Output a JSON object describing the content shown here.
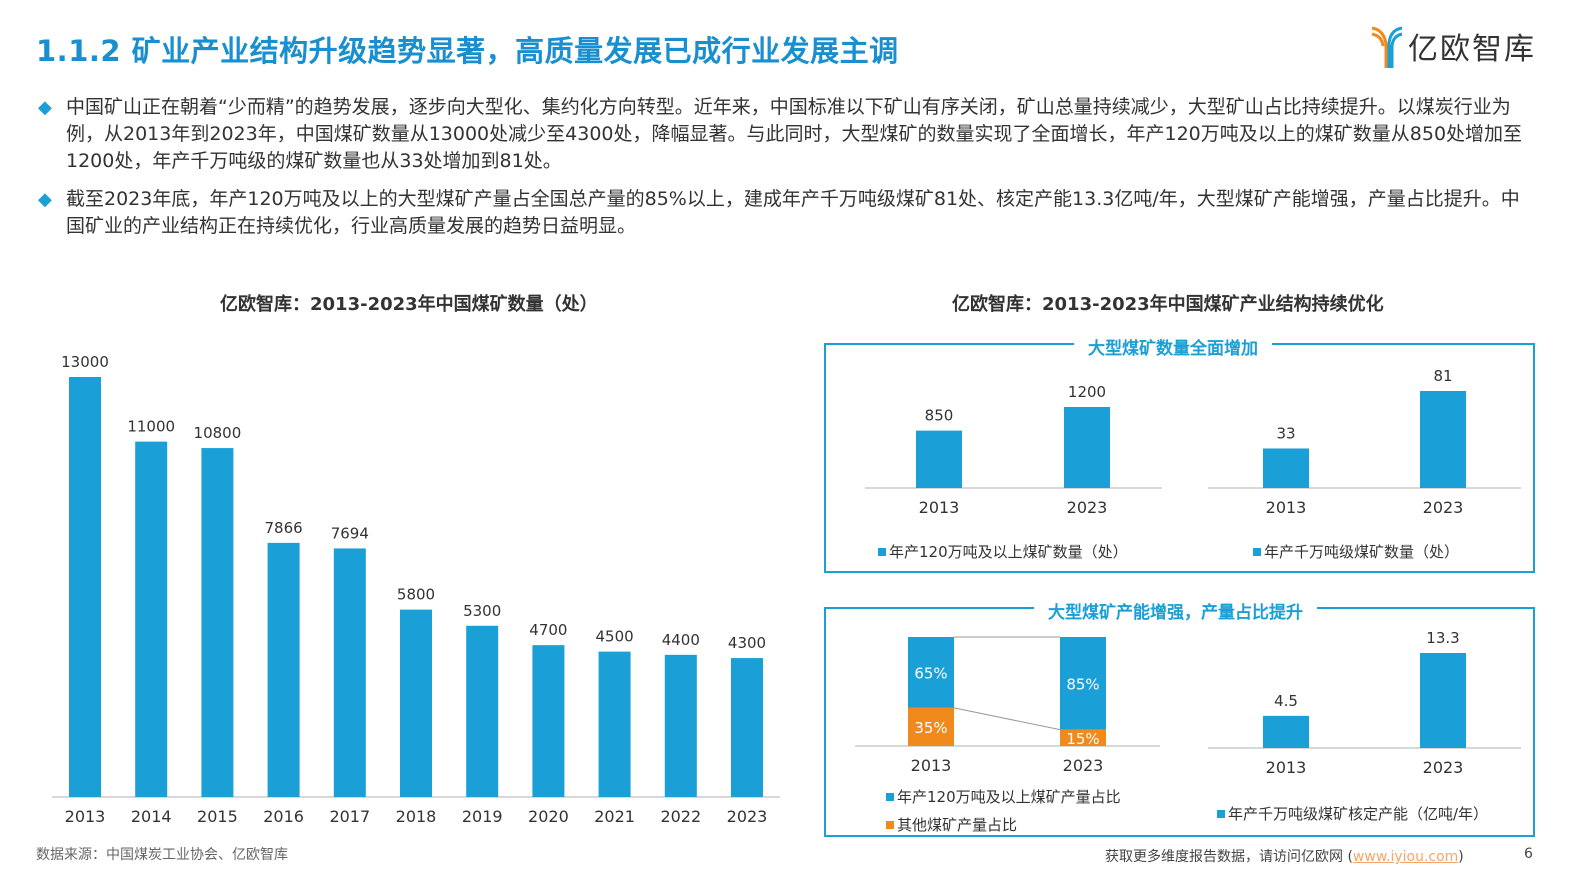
{
  "header": {
    "title": "1.1.2 矿业产业结构升级趋势显著，高质量发展已成行业发展主调",
    "logo_text": "亿欧智库"
  },
  "paragraphs": [
    "中国矿山正在朝着“少而精”的趋势发展，逐步向大型化、集约化方向转型。近年来，中国标准以下矿山有序关闭，矿山总量持续减少，大型矿山占比持续提升。以煤炭行业为例，从2013年到2023年，中国煤矿数量从13000处减少至4300处，降幅显著。与此同时，大型煤矿的数量实现了全面增长，年产120万吨及以上的煤矿数量从850处增加至1200处，年产千万吨级的煤矿数量也从33处增加到81处。",
    "截至2023年底，年产120万吨及以上的大型煤矿产量占全国总产量的85%以上，建成年产千万吨级煤矿81处、核定产能13.3亿吨/年，大型煤矿产能增强，产量占比提升。中国矿业的产业结构正在持续优化，行业高质量发展的趋势日益明显。"
  ],
  "bullet_icon": "diamond-icon",
  "colors": {
    "blue": "#1a9fd6",
    "orange": "#f08a1d",
    "title": "#1a8fd0"
  },
  "chart_data": [
    {
      "type": "bar",
      "title": "亿欧智库：2013-2023年中国煤矿数量（处）",
      "categories": [
        "2013",
        "2014",
        "2015",
        "2016",
        "2017",
        "2018",
        "2019",
        "2020",
        "2021",
        "2022",
        "2023"
      ],
      "values": [
        13000,
        11000,
        10800,
        7866,
        7694,
        5800,
        5300,
        4700,
        4500,
        4400,
        4300
      ],
      "ylim": [
        0,
        13000
      ],
      "grid": false
    },
    {
      "type": "bar",
      "title": "亿欧智库：2013-2023年中国煤矿产业结构持续优化",
      "panel": "大型煤矿数量全面增加",
      "categories": [
        "2013",
        "2023"
      ],
      "series": [
        {
          "name": "年产120万吨及以上煤矿数量（处）",
          "values": [
            850,
            1200
          ]
        }
      ]
    },
    {
      "type": "bar",
      "panel": "大型煤矿数量全面增加",
      "categories": [
        "2013",
        "2023"
      ],
      "series": [
        {
          "name": "年产千万吨级煤矿数量（处）",
          "values": [
            33,
            81
          ]
        }
      ]
    },
    {
      "type": "bar",
      "stacked": true,
      "panel": "大型煤矿产能增强，产量占比提升",
      "categories": [
        "2013",
        "2023"
      ],
      "series": [
        {
          "name": "年产120万吨及以上煤矿产量占比",
          "values": [
            65,
            85
          ],
          "labels": [
            "65%",
            "85%"
          ]
        },
        {
          "name": "其他煤矿产量占比",
          "values": [
            35,
            15
          ],
          "labels": [
            "35%",
            "15%"
          ]
        }
      ]
    },
    {
      "type": "bar",
      "panel": "大型煤矿产能增强，产量占比提升",
      "categories": [
        "2013",
        "2023"
      ],
      "series": [
        {
          "name": "年产千万吨级煤矿核定产能（亿吨/年）",
          "values": [
            4.5,
            13.3
          ]
        }
      ]
    }
  ],
  "footer": {
    "source": "数据来源：中国煤炭工业协会、亿欧智库",
    "more": "获取更多维度报告数据，请访问亿欧网 (",
    "link": "www.iyiou.com",
    "close": ")",
    "page": "6"
  }
}
